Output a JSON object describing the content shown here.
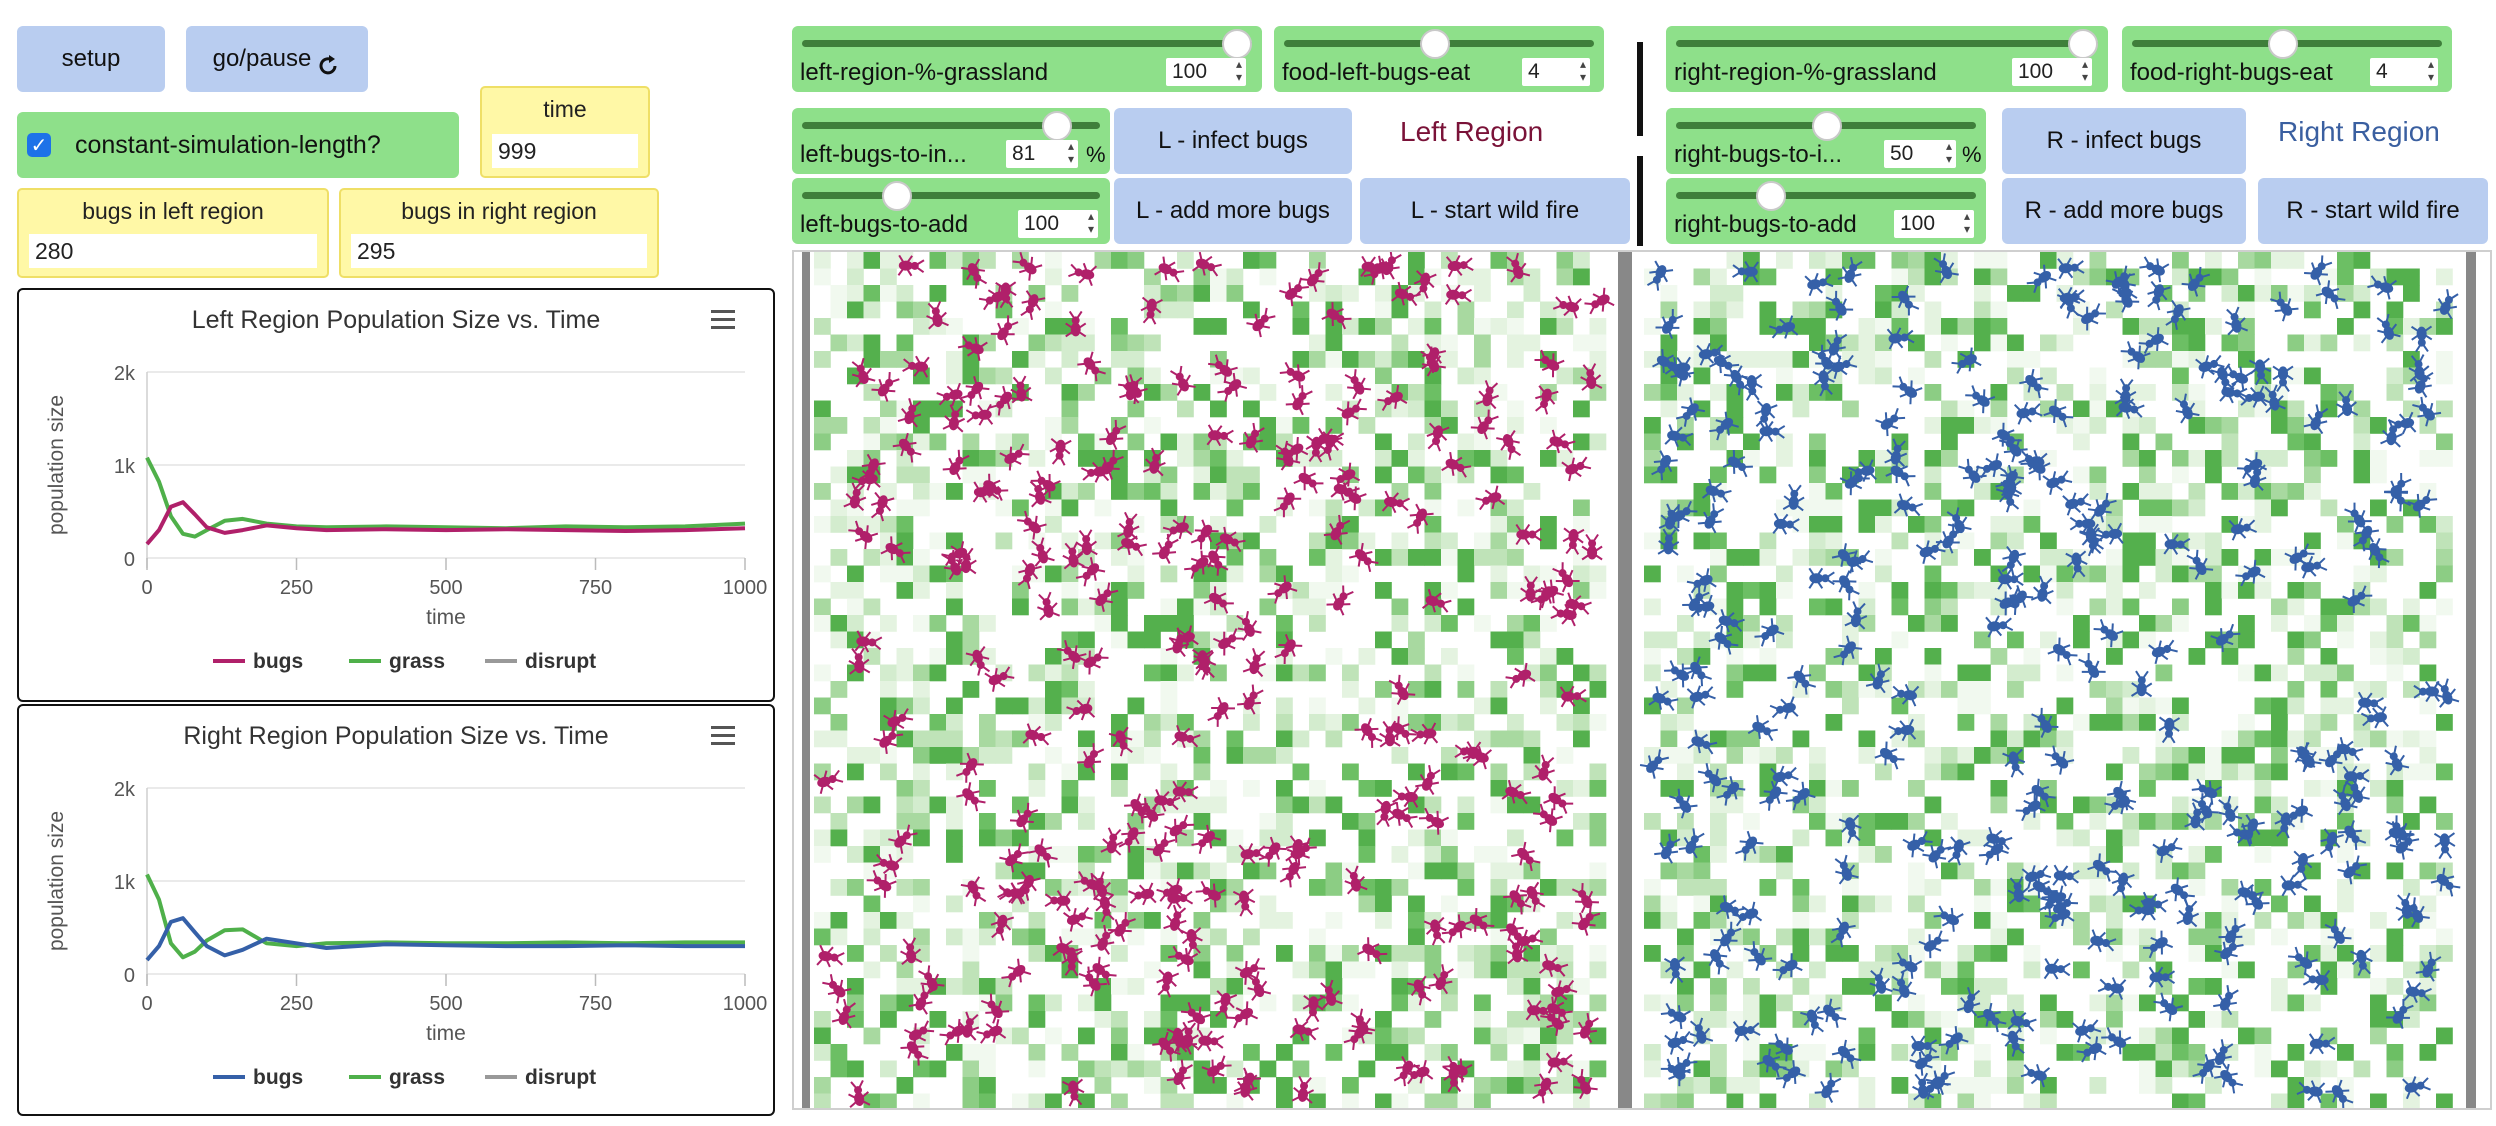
{
  "buttons": {
    "setup": "setup",
    "go_pause": "go/pause",
    "l_infect": "L - infect bugs",
    "l_add": "L - add more bugs",
    "l_fire": "L - start wild fire",
    "r_infect": "R - infect bugs",
    "r_add": "R - add more bugs",
    "r_fire": "R - start wild fire"
  },
  "switch": {
    "label": "constant-simulation-length?",
    "checked": true
  },
  "monitors": {
    "time": {
      "label": "time",
      "value": "999"
    },
    "left_bugs": {
      "label": "bugs in left region",
      "value": "280"
    },
    "right_bugs": {
      "label": "bugs in right region",
      "value": "295"
    }
  },
  "sliders": {
    "left_grass": {
      "name": "left-region-%-grassland",
      "value": "100",
      "fraction": 1.0
    },
    "food_left": {
      "name": "food-left-bugs-eat",
      "value": "4",
      "fraction": 0.45
    },
    "left_infect": {
      "name": "left-bugs-to-in...",
      "value": "81",
      "unit": "%",
      "fraction": 0.81
    },
    "left_add": {
      "name": "left-bugs-to-add",
      "value": "100",
      "fraction": 0.33
    },
    "right_grass": {
      "name": "right-region-%-grassland",
      "value": "100",
      "fraction": 1.0
    },
    "food_right": {
      "name": "food-right-bugs-eat",
      "value": "4",
      "fraction": 0.45
    },
    "right_infect": {
      "name": "right-bugs-to-i...",
      "value": "50",
      "unit": "%",
      "fraction": 0.5
    },
    "right_add": {
      "name": "right-bugs-to-add",
      "value": "100",
      "fraction": 0.33
    }
  },
  "regions": {
    "left": "Left Region",
    "right": "Right Region"
  },
  "colors": {
    "left_bug": "#b0206a",
    "right_bug": "#3560a8",
    "grass": "#4fb04a",
    "disrupt": "#999999",
    "left_label": "#7a1238",
    "right_label": "#3a5fa0"
  },
  "plots": [
    {
      "title": "Left Region Population Size vs. Time",
      "chart_data": {
        "type": "line",
        "xlabel": "time",
        "ylabel": "population size",
        "xlim": [
          0,
          1000
        ],
        "ylim": [
          0,
          2000
        ],
        "xticks": [
          "0",
          "250",
          "500",
          "750",
          "1000"
        ],
        "yticks": [
          "0",
          "1k",
          "2k"
        ],
        "series": [
          {
            "name": "bugs",
            "color": "#b0206a",
            "x": [
              0,
              20,
              40,
              60,
              80,
              100,
              130,
              160,
              200,
              250,
              300,
              400,
              500,
              600,
              700,
              800,
              900,
              1000
            ],
            "y": [
              150,
              300,
              550,
              600,
              470,
              330,
              270,
              300,
              350,
              320,
              300,
              310,
              300,
              310,
              300,
              290,
              300,
              320
            ]
          },
          {
            "name": "grass",
            "color": "#4fb04a",
            "x": [
              0,
              20,
              40,
              60,
              80,
              100,
              130,
              160,
              200,
              250,
              300,
              400,
              500,
              600,
              700,
              800,
              900,
              1000
            ],
            "y": [
              1080,
              820,
              450,
              260,
              230,
              300,
              400,
              420,
              370,
              340,
              330,
              340,
              330,
              320,
              340,
              330,
              340,
              370
            ]
          },
          {
            "name": "disrupt",
            "color": "#999999",
            "x": [],
            "y": []
          }
        ]
      }
    },
    {
      "title": "Right Region Population Size vs. Time",
      "chart_data": {
        "type": "line",
        "xlabel": "time",
        "ylabel": "population size",
        "xlim": [
          0,
          1000
        ],
        "ylim": [
          0,
          2000
        ],
        "xticks": [
          "0",
          "250",
          "500",
          "750",
          "1000"
        ],
        "yticks": [
          "0",
          "1k",
          "2k"
        ],
        "series": [
          {
            "name": "bugs",
            "color": "#3560a8",
            "x": [
              0,
              20,
              40,
              60,
              80,
              100,
              130,
              160,
              200,
              250,
              300,
              400,
              500,
              600,
              700,
              800,
              900,
              1000
            ],
            "y": [
              150,
              300,
              560,
              600,
              450,
              300,
              200,
              260,
              380,
              330,
              280,
              320,
              310,
              300,
              300,
              310,
              300,
              300
            ]
          },
          {
            "name": "grass",
            "color": "#4fb04a",
            "x": [
              0,
              20,
              40,
              60,
              80,
              100,
              130,
              160,
              200,
              250,
              300,
              400,
              500,
              600,
              700,
              800,
              900,
              1000
            ],
            "y": [
              1070,
              800,
              330,
              180,
              240,
              360,
              470,
              480,
              330,
              300,
              330,
              340,
              330,
              330,
              340,
              330,
              340,
              340
            ]
          },
          {
            "name": "disrupt",
            "color": "#999999",
            "x": [],
            "y": []
          }
        ]
      }
    }
  ]
}
